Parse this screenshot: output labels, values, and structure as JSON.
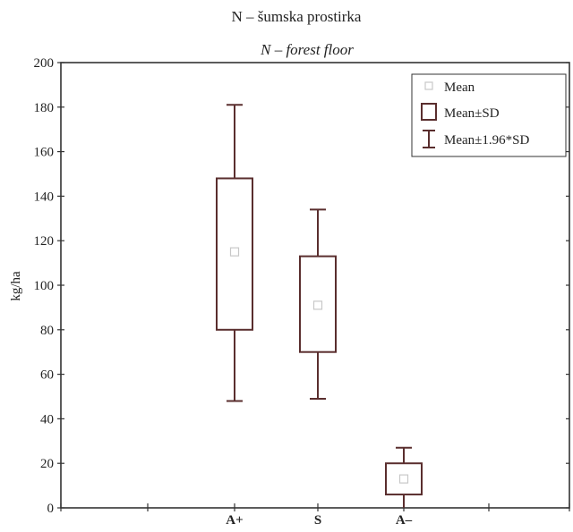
{
  "chart_data": {
    "type": "box",
    "title": "N – šumska prostirka",
    "subtitle": "N – forest floor",
    "xlabel": "",
    "ylabel": "kg/ha",
    "ylim": [
      0,
      200
    ],
    "yticks": [
      0,
      20,
      40,
      60,
      80,
      100,
      120,
      140,
      160,
      180,
      200
    ],
    "categories": [
      "A+",
      "S",
      "A–"
    ],
    "series": [
      {
        "name": "Mean",
        "values": [
          115,
          91,
          13
        ]
      },
      {
        "name": "Mean±SD",
        "low": [
          80,
          70,
          6
        ],
        "high": [
          148,
          113,
          20
        ]
      },
      {
        "name": "Mean±1.96*SD",
        "low": [
          48,
          49,
          -1
        ],
        "high": [
          181,
          134,
          27
        ]
      }
    ],
    "legend_position": "top-right",
    "colors": {
      "box": "#5a2e2e",
      "mean_marker": "#c8c8c8",
      "axis": "#333333"
    }
  }
}
